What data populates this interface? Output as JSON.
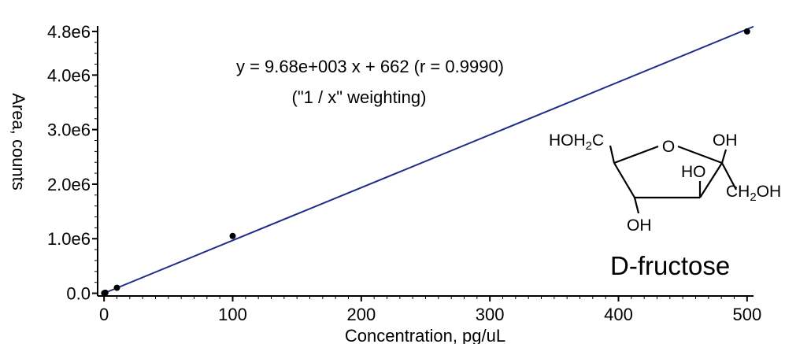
{
  "chart_data": {
    "type": "scatter",
    "xlabel": "Concentration, pg/uL",
    "ylabel": "Area, counts",
    "xlim": [
      -5,
      505
    ],
    "ylim": [
      -50000,
      4900000
    ],
    "x_ticks": [
      0,
      100,
      200,
      300,
      400,
      500
    ],
    "x_tick_labels": [
      "0",
      "100",
      "200",
      "300",
      "400",
      "500"
    ],
    "y_ticks": [
      0,
      1000000,
      2000000,
      3000000,
      4000000,
      4800000
    ],
    "y_tick_labels": [
      "0.0",
      "1.0e6",
      "2.0e6",
      "3.0e6",
      "4.0e6",
      "4.8e6"
    ],
    "grid": false,
    "series": [
      {
        "points": [
          {
            "x": 0.1,
            "y": 1000
          },
          {
            "x": 0.5,
            "y": 5000
          },
          {
            "x": 1,
            "y": 10000
          },
          {
            "x": 10,
            "y": 100000
          },
          {
            "x": 100,
            "y": 1050000
          },
          {
            "x": 500,
            "y": 4800000
          }
        ],
        "color": "#000000"
      }
    ],
    "fit_line": {
      "slope": 9680,
      "intercept": 662,
      "x_range": [
        0,
        505
      ],
      "color": "#1f2d8a"
    },
    "annotations": {
      "equation": "y = 9.68e+003 x + 662 (r = 0.9990)",
      "weighting": "(\"1 / x\" weighting)"
    },
    "molecule": {
      "name": "D-fructose",
      "labels": {
        "hoh2c_main": "HOH",
        "hoh2c_sub": "2",
        "hoh2c_end": "C",
        "ring_o": "O",
        "oh_top": "OH",
        "ho_inner": "HO",
        "ch2oh_main": "CH",
        "ch2oh_sub": "2",
        "ch2oh_end": "OH",
        "oh_bottom": "OH"
      }
    }
  }
}
